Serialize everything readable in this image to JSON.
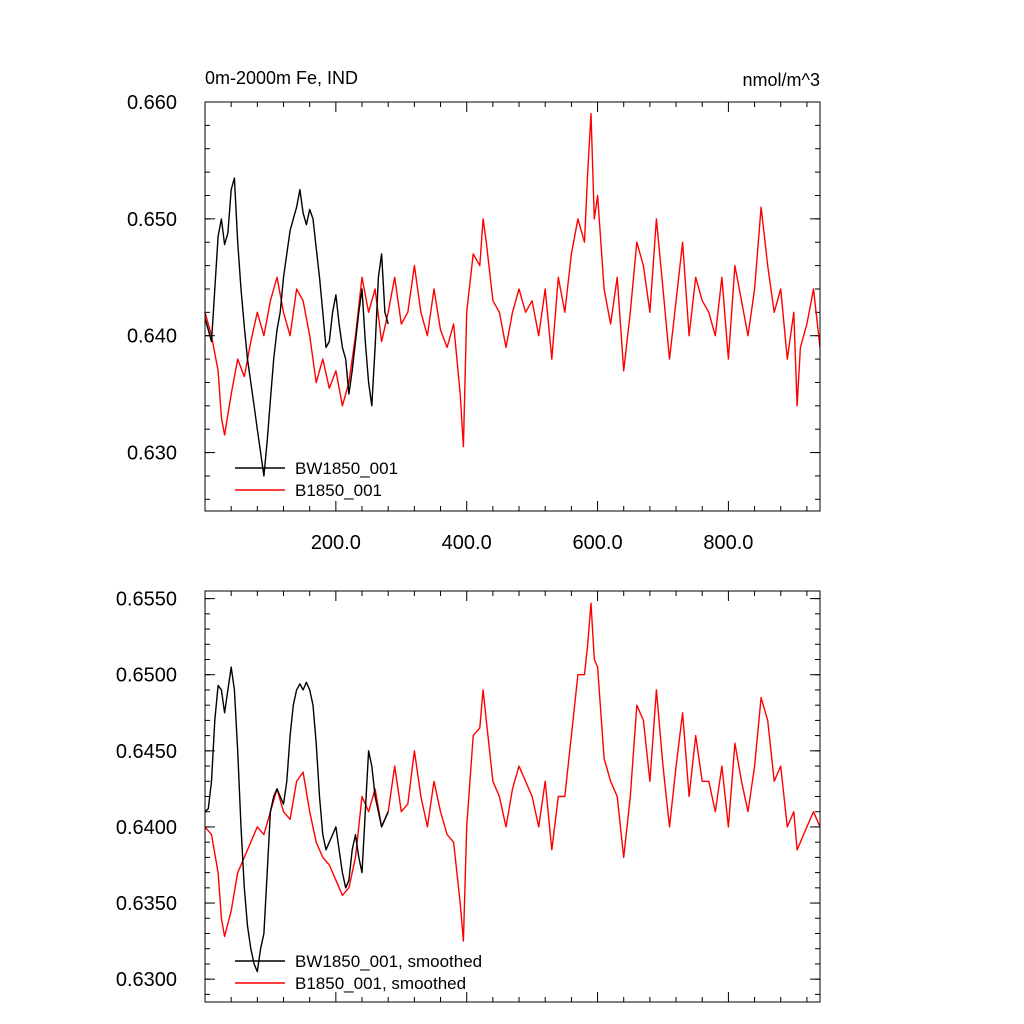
{
  "chart_data": [
    {
      "type": "line",
      "title_left": "0m-2000m Fe, IND",
      "title_right": "nmol/m^3",
      "xlabel": "",
      "ylabel": "",
      "xlim": [
        0,
        940
      ],
      "ylim": [
        0.625,
        0.66
      ],
      "x_ticks": [
        200,
        400,
        600,
        800
      ],
      "x_tick_labels": [
        "200.0",
        "400.0",
        "600.0",
        "800.0"
      ],
      "y_ticks": [
        0.63,
        0.64,
        0.65,
        0.66
      ],
      "y_tick_labels": [
        "0.630",
        "0.640",
        "0.650",
        "0.660"
      ],
      "legend_position": "bottom-left",
      "series": [
        {
          "name": "BW1850_001",
          "color": "#000000",
          "x": [
            0,
            5,
            10,
            15,
            20,
            25,
            30,
            35,
            40,
            45,
            50,
            55,
            60,
            65,
            70,
            75,
            80,
            85,
            90,
            95,
            100,
            105,
            110,
            115,
            120,
            125,
            130,
            135,
            140,
            145,
            150,
            155,
            160,
            165,
            170,
            175,
            180,
            185,
            190,
            195,
            200,
            205,
            210,
            215,
            220,
            225,
            230,
            235,
            240,
            245,
            250,
            255,
            260,
            265,
            270,
            275,
            280
          ],
          "y": [
            0.6415,
            0.6405,
            0.6395,
            0.644,
            0.6485,
            0.65,
            0.6478,
            0.6488,
            0.6525,
            0.6535,
            0.648,
            0.644,
            0.6408,
            0.638,
            0.636,
            0.634,
            0.632,
            0.63,
            0.628,
            0.631,
            0.6345,
            0.638,
            0.6405,
            0.642,
            0.645,
            0.647,
            0.649,
            0.65,
            0.651,
            0.6525,
            0.6505,
            0.6495,
            0.6508,
            0.65,
            0.6475,
            0.645,
            0.642,
            0.639,
            0.6395,
            0.642,
            0.6435,
            0.641,
            0.639,
            0.638,
            0.635,
            0.637,
            0.6395,
            0.642,
            0.644,
            0.6395,
            0.636,
            0.634,
            0.639,
            0.645,
            0.647,
            0.642,
            0.641
          ]
        },
        {
          "name": "B1850_001",
          "color": "#ff0000",
          "x": [
            0,
            10,
            20,
            25,
            30,
            40,
            50,
            60,
            70,
            80,
            90,
            100,
            110,
            120,
            130,
            140,
            150,
            160,
            170,
            180,
            190,
            200,
            210,
            220,
            230,
            240,
            250,
            260,
            270,
            280,
            290,
            300,
            310,
            320,
            330,
            340,
            350,
            360,
            370,
            380,
            390,
            395,
            400,
            410,
            420,
            425,
            430,
            440,
            450,
            460,
            470,
            480,
            490,
            500,
            510,
            520,
            530,
            540,
            550,
            560,
            570,
            580,
            585,
            590,
            595,
            600,
            610,
            620,
            630,
            640,
            650,
            660,
            670,
            680,
            690,
            700,
            710,
            720,
            730,
            740,
            750,
            760,
            770,
            780,
            790,
            800,
            810,
            820,
            830,
            840,
            850,
            860,
            870,
            880,
            890,
            900,
            905,
            910,
            920,
            930,
            940
          ],
          "y": [
            0.642,
            0.64,
            0.637,
            0.633,
            0.6315,
            0.635,
            0.638,
            0.6365,
            0.6395,
            0.642,
            0.64,
            0.643,
            0.645,
            0.642,
            0.64,
            0.644,
            0.643,
            0.64,
            0.636,
            0.638,
            0.6355,
            0.637,
            0.634,
            0.636,
            0.64,
            0.645,
            0.642,
            0.644,
            0.6395,
            0.642,
            0.645,
            0.641,
            0.642,
            0.646,
            0.642,
            0.64,
            0.644,
            0.6405,
            0.639,
            0.641,
            0.635,
            0.6305,
            0.642,
            0.647,
            0.646,
            0.65,
            0.648,
            0.643,
            0.642,
            0.639,
            0.642,
            0.644,
            0.642,
            0.643,
            0.64,
            0.644,
            0.638,
            0.645,
            0.642,
            0.647,
            0.65,
            0.648,
            0.654,
            0.659,
            0.65,
            0.652,
            0.644,
            0.641,
            0.645,
            0.637,
            0.642,
            0.648,
            0.646,
            0.642,
            0.65,
            0.644,
            0.638,
            0.643,
            0.648,
            0.64,
            0.645,
            0.643,
            0.642,
            0.64,
            0.645,
            0.638,
            0.646,
            0.643,
            0.64,
            0.644,
            0.651,
            0.646,
            0.642,
            0.644,
            0.638,
            0.642,
            0.634,
            0.639,
            0.641,
            0.644,
            0.639
          ]
        }
      ]
    },
    {
      "type": "line",
      "xlabel": "",
      "ylabel": "",
      "xlim": [
        0,
        940
      ],
      "ylim": [
        0.6285,
        0.6555
      ],
      "x_ticks": [
        200,
        400,
        600,
        800
      ],
      "y_ticks": [
        0.63,
        0.635,
        0.64,
        0.645,
        0.65,
        0.655
      ],
      "y_tick_labels": [
        "0.6300",
        "0.6350",
        "0.6400",
        "0.6450",
        "0.6500",
        "0.6550"
      ],
      "legend_position": "bottom-left",
      "series": [
        {
          "name": "BW1850_001, smoothed",
          "color": "#000000",
          "x": [
            0,
            5,
            10,
            15,
            20,
            25,
            30,
            35,
            40,
            45,
            50,
            55,
            60,
            65,
            70,
            75,
            80,
            85,
            90,
            95,
            100,
            105,
            110,
            115,
            120,
            125,
            130,
            135,
            140,
            145,
            150,
            155,
            160,
            165,
            170,
            175,
            180,
            185,
            190,
            195,
            200,
            205,
            210,
            215,
            220,
            225,
            230,
            235,
            240,
            245,
            250,
            255,
            260,
            265,
            270,
            275,
            280
          ],
          "y": [
            0.641,
            0.6412,
            0.643,
            0.647,
            0.6493,
            0.649,
            0.6475,
            0.649,
            0.6505,
            0.649,
            0.645,
            0.64,
            0.636,
            0.6335,
            0.632,
            0.631,
            0.6305,
            0.632,
            0.633,
            0.637,
            0.641,
            0.642,
            0.6425,
            0.642,
            0.6415,
            0.643,
            0.646,
            0.648,
            0.649,
            0.6494,
            0.649,
            0.6495,
            0.649,
            0.648,
            0.6455,
            0.642,
            0.6395,
            0.6385,
            0.639,
            0.6395,
            0.64,
            0.6385,
            0.637,
            0.636,
            0.6365,
            0.6385,
            0.6395,
            0.638,
            0.637,
            0.641,
            0.645,
            0.644,
            0.642,
            0.641,
            0.64,
            0.6405,
            0.641
          ]
        },
        {
          "name": "B1850_001, smoothed",
          "color": "#ff0000",
          "x": [
            0,
            10,
            20,
            25,
            30,
            40,
            50,
            60,
            70,
            80,
            90,
            100,
            110,
            120,
            130,
            140,
            150,
            160,
            170,
            180,
            190,
            200,
            210,
            220,
            230,
            240,
            250,
            260,
            270,
            280,
            290,
            300,
            310,
            320,
            330,
            340,
            350,
            360,
            370,
            380,
            390,
            395,
            400,
            410,
            420,
            425,
            430,
            440,
            450,
            460,
            470,
            480,
            490,
            500,
            510,
            520,
            530,
            540,
            550,
            560,
            570,
            580,
            585,
            590,
            595,
            600,
            610,
            620,
            630,
            640,
            650,
            660,
            670,
            680,
            690,
            700,
            710,
            720,
            730,
            740,
            750,
            760,
            770,
            780,
            790,
            800,
            810,
            820,
            830,
            840,
            850,
            860,
            870,
            880,
            890,
            900,
            905,
            910,
            920,
            930,
            940
          ],
          "y": [
            0.64,
            0.6395,
            0.637,
            0.634,
            0.6328,
            0.6345,
            0.637,
            0.638,
            0.639,
            0.64,
            0.6395,
            0.641,
            0.6425,
            0.641,
            0.6405,
            0.643,
            0.6436,
            0.641,
            0.639,
            0.638,
            0.6375,
            0.6365,
            0.6355,
            0.636,
            0.638,
            0.642,
            0.641,
            0.6425,
            0.64,
            0.641,
            0.644,
            0.641,
            0.6415,
            0.645,
            0.642,
            0.64,
            0.643,
            0.641,
            0.6395,
            0.639,
            0.635,
            0.6325,
            0.64,
            0.646,
            0.6465,
            0.649,
            0.647,
            0.643,
            0.642,
            0.64,
            0.6425,
            0.644,
            0.643,
            0.642,
            0.64,
            0.643,
            0.6385,
            0.642,
            0.642,
            0.646,
            0.65,
            0.65,
            0.652,
            0.6547,
            0.651,
            0.6505,
            0.6445,
            0.643,
            0.642,
            0.638,
            0.642,
            0.648,
            0.647,
            0.643,
            0.649,
            0.644,
            0.64,
            0.644,
            0.6475,
            0.642,
            0.646,
            0.643,
            0.643,
            0.641,
            0.644,
            0.64,
            0.6455,
            0.643,
            0.641,
            0.644,
            0.6485,
            0.647,
            0.643,
            0.644,
            0.64,
            0.641,
            0.6385,
            0.639,
            0.64,
            0.641,
            0.64
          ]
        }
      ]
    }
  ]
}
